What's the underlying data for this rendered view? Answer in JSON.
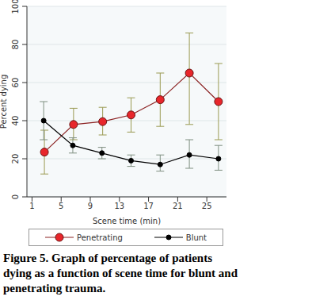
{
  "chart_data": {
    "type": "line",
    "caption": "Figure 5. Graph of percentage of patients dying as a function of scene time for blunt and penetrating trauma.",
    "x_label": "Scene time (min)",
    "y_label": "Percent dying",
    "xlim": [
      0.3,
      27.7
    ],
    "xticks": [
      1,
      5,
      9,
      13,
      17,
      21,
      25
    ],
    "ylim": [
      0,
      100
    ],
    "yticks": [
      0,
      20,
      40,
      60,
      80,
      100
    ],
    "grid": true,
    "legend": "bottom",
    "series": [
      {
        "name": "Penetrating",
        "color": "#e8262b",
        "marker": "circle",
        "x": [
          2.7,
          6.7,
          10.7,
          14.6,
          18.6,
          22.6,
          26.6
        ],
        "values": [
          23.5,
          38,
          39.5,
          43,
          51,
          65,
          50
        ],
        "error_low": [
          12,
          30,
          32.5,
          34,
          37,
          38,
          30
        ],
        "error_high": [
          35,
          46.5,
          47,
          52,
          65,
          86,
          70
        ]
      },
      {
        "name": "Blunt",
        "color": "#000000",
        "marker": "circle",
        "x": [
          2.6,
          6.6,
          10.6,
          14.6,
          18.6,
          22.6,
          26.6
        ],
        "values": [
          40,
          27,
          23,
          19,
          17,
          22,
          20
        ],
        "error_low": [
          30,
          23,
          20,
          16,
          13.5,
          15,
          14
        ],
        "error_high": [
          50,
          31,
          26,
          22,
          22,
          30,
          27
        ]
      }
    ]
  }
}
